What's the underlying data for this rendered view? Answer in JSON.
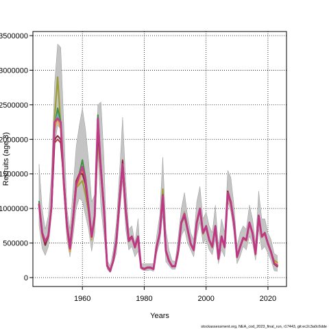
{
  "chart_data": {
    "type": "line",
    "xlabel": "Years",
    "ylabel": "Recruits (age 3)",
    "xlim": [
      1944,
      2026
    ],
    "ylim": [
      0,
      3500000
    ],
    "x_ticks": [
      1960,
      1980,
      2000,
      2020
    ],
    "y_ticks": [
      0,
      500000,
      1000000,
      1500000,
      2000000,
      2500000,
      3000000,
      3500000
    ],
    "y_tick_labels": [
      "0",
      "500000",
      "1000000",
      "1500000",
      "2000000",
      "2500000",
      "3000000",
      "3500000"
    ],
    "grid": true,
    "grid_style": "dotted",
    "legend": "none",
    "band_color": "#c4c4c4",
    "x": [
      1946,
      1947,
      1948,
      1949,
      1950,
      1951,
      1952,
      1953,
      1954,
      1955,
      1956,
      1957,
      1958,
      1959,
      1960,
      1961,
      1962,
      1963,
      1964,
      1965,
      1966,
      1967,
      1968,
      1969,
      1970,
      1971,
      1972,
      1973,
      1974,
      1975,
      1976,
      1977,
      1978,
      1979,
      1980,
      1981,
      1982,
      1983,
      1984,
      1985,
      1986,
      1987,
      1988,
      1989,
      1990,
      1991,
      1992,
      1993,
      1994,
      1995,
      1996,
      1997,
      1998,
      1999,
      2000,
      2001,
      2002,
      2003,
      2004,
      2005,
      2006,
      2007,
      2008,
      2009,
      2010,
      2011,
      2012,
      2013,
      2014,
      2015,
      2016,
      2017,
      2018,
      2019,
      2020,
      2021,
      2022,
      2023
    ],
    "band": {
      "lower": [
        750000,
        420000,
        320000,
        450000,
        900000,
        1900000,
        2200000,
        2150000,
        1200000,
        550000,
        300000,
        600000,
        1000000,
        1150000,
        1100000,
        900000,
        700000,
        380000,
        650000,
        1800000,
        1000000,
        600000,
        120000,
        70000,
        200000,
        350000,
        900000,
        1400000,
        700000,
        400000,
        450000,
        300000,
        380000,
        120000,
        100000,
        100000,
        110000,
        90000,
        350000,
        500000,
        900000,
        230000,
        170000,
        120000,
        120000,
        300000,
        600000,
        700000,
        500000,
        400000,
        300000,
        600000,
        800000,
        500000,
        550000,
        400000,
        330000,
        550000,
        200000,
        400000,
        300000,
        1100000,
        950000,
        650000,
        200000,
        300000,
        450000,
        400000,
        600000,
        500000,
        250000,
        700000,
        400000,
        450000,
        350000,
        250000,
        100000,
        90000
      ],
      "upper": [
        1640000,
        1000000,
        700000,
        900000,
        1500000,
        2800000,
        3380000,
        3330000,
        2200000,
        1000000,
        700000,
        1300000,
        1900000,
        2200000,
        2450000,
        2150000,
        1700000,
        1100000,
        1200000,
        2500000,
        2540000,
        1700000,
        250000,
        170000,
        400000,
        800000,
        1500000,
        2320000,
        1400000,
        700000,
        750000,
        500000,
        850000,
        200000,
        200000,
        200000,
        200000,
        200000,
        600000,
        900000,
        1740000,
        700000,
        400000,
        250000,
        230000,
        600000,
        1000000,
        1230000,
        900000,
        650000,
        550000,
        1100000,
        1320000,
        850000,
        950000,
        750000,
        650000,
        1050000,
        450000,
        850000,
        650000,
        1550000,
        1450000,
        1050000,
        450000,
        650000,
        750000,
        700000,
        1050000,
        850000,
        500000,
        1250000,
        850000,
        850000,
        650000,
        550000,
        350000,
        320000
      ]
    },
    "series": [
      {
        "color": "#b52c3a",
        "values": [
          1050000,
          650000,
          500000,
          600000,
          1000000,
          1950000,
          2000000,
          1950000,
          1400000,
          800000,
          450000,
          900000,
          1400000,
          1500000,
          1550000,
          1350000,
          1000000,
          600000,
          900000,
          2100000,
          1600000,
          1000000,
          180000,
          100000,
          250000,
          550000,
          1150000,
          1700000,
          1000000,
          550000,
          600000,
          450000,
          600000,
          150000,
          130000,
          150000,
          150000,
          130000,
          450000,
          650000,
          1150000,
          400000,
          250000,
          170000,
          170000,
          400000,
          800000,
          900000,
          700000,
          500000,
          400000,
          800000,
          1000000,
          650000,
          750000,
          550000,
          450000,
          750000,
          280000,
          600000,
          450000,
          1250000,
          1100000,
          800000,
          300000,
          450000,
          580000,
          550000,
          800000,
          650000,
          350000,
          900000,
          600000,
          650000,
          500000,
          380000,
          200000,
          170000
        ]
      },
      {
        "color": "#9a9a2a",
        "values": [
          1060000,
          620000,
          480000,
          620000,
          1050000,
          2300000,
          2900000,
          2200000,
          1300000,
          720000,
          380000,
          830000,
          1300000,
          1350000,
          1400000,
          1200000,
          950000,
          550000,
          850000,
          2000000,
          1500000,
          950000,
          170000,
          90000,
          240000,
          520000,
          1100000,
          1600000,
          950000,
          520000,
          580000,
          430000,
          580000,
          140000,
          120000,
          140000,
          140000,
          120000,
          430000,
          630000,
          1280000,
          380000,
          240000,
          160000,
          160000,
          380000,
          780000,
          880000,
          680000,
          480000,
          390000,
          780000,
          980000,
          630000,
          720000,
          530000,
          430000,
          720000,
          260000,
          580000,
          430000,
          1200000,
          1050000,
          780000,
          290000,
          430000,
          560000,
          530000,
          780000,
          630000,
          330000,
          880000,
          580000,
          630000,
          480000,
          360000,
          250000,
          220000
        ]
      },
      {
        "color": "#3b8a3b",
        "values": [
          1100000,
          650000,
          500000,
          620000,
          1050000,
          2150000,
          2450000,
          2250000,
          1380000,
          750000,
          420000,
          850000,
          1350000,
          1500000,
          1700000,
          1450000,
          1050000,
          600000,
          900000,
          2350000,
          1550000,
          980000,
          175000,
          95000,
          245000,
          530000,
          1100000,
          1650000,
          980000,
          530000,
          590000,
          440000,
          590000,
          145000,
          125000,
          145000,
          145000,
          125000,
          440000,
          640000,
          1200000,
          390000,
          245000,
          165000,
          165000,
          390000,
          790000,
          890000,
          690000,
          490000,
          395000,
          790000,
          990000,
          640000,
          730000,
          540000,
          440000,
          730000,
          270000,
          590000,
          440000,
          1220000,
          1080000,
          790000,
          295000,
          440000,
          570000,
          540000,
          790000,
          640000,
          340000,
          890000,
          590000,
          640000,
          490000,
          370000,
          210000,
          180000
        ]
      },
      {
        "color": "#6aa7c9",
        "values": [
          1040000,
          630000,
          490000,
          600000,
          1020000,
          2200000,
          2350000,
          2200000,
          1350000,
          740000,
          410000,
          840000,
          1330000,
          1450000,
          1600000,
          1400000,
          1000000,
          580000,
          880000,
          2250000,
          1520000,
          960000,
          170000,
          92000,
          242000,
          525000,
          1080000,
          1620000,
          960000,
          525000,
          585000,
          435000,
          585000,
          142000,
          122000,
          142000,
          142000,
          122000,
          435000,
          635000,
          1180000,
          385000,
          242000,
          162000,
          162000,
          385000,
          800000,
          950000,
          720000,
          500000,
          400000,
          800000,
          1000000,
          650000,
          740000,
          545000,
          445000,
          740000,
          275000,
          595000,
          445000,
          1230000,
          1090000,
          800000,
          300000,
          445000,
          575000,
          545000,
          800000,
          645000,
          345000,
          895000,
          595000,
          645000,
          495000,
          375000,
          215000,
          185000
        ]
      },
      {
        "color": "#e4a23a",
        "values": [
          1030000,
          610000,
          470000,
          590000,
          1000000,
          2150000,
          2300000,
          2150000,
          1320000,
          720000,
          380000,
          820000,
          1310000,
          1400000,
          1550000,
          1380000,
          980000,
          560000,
          860000,
          2200000,
          1500000,
          940000,
          165000,
          90000,
          238000,
          518000,
          1070000,
          1600000,
          950000,
          518000,
          578000,
          428000,
          578000,
          140000,
          120000,
          140000,
          140000,
          120000,
          428000,
          628000,
          1170000,
          380000,
          238000,
          160000,
          160000,
          380000,
          790000,
          940000,
          710000,
          490000,
          395000,
          790000,
          990000,
          640000,
          730000,
          540000,
          440000,
          730000,
          265000,
          585000,
          440000,
          1210000,
          1070000,
          785000,
          292000,
          438000,
          565000,
          535000,
          785000,
          635000,
          338000,
          885000,
          585000,
          635000,
          488000,
          368000,
          230000,
          200000
        ]
      },
      {
        "color": "#7a1f3a",
        "values": [
          1050000,
          640000,
          470000,
          600000,
          1000000,
          2000000,
          2050000,
          2000000,
          1420000,
          780000,
          440000,
          880000,
          1380000,
          1500000,
          1500000,
          1350000,
          990000,
          590000,
          880000,
          2100000,
          1560000,
          990000,
          175000,
          97000,
          245000,
          540000,
          1120000,
          1680000,
          990000,
          540000,
          595000,
          445000,
          595000,
          146000,
          126000,
          146000,
          146000,
          126000,
          445000,
          645000,
          1150000,
          395000,
          246000,
          166000,
          166000,
          395000,
          795000,
          895000,
          695000,
          495000,
          398000,
          795000,
          995000,
          645000,
          745000,
          545000,
          448000,
          745000,
          278000,
          598000,
          448000,
          1245000,
          1095000,
          798000,
          298000,
          448000,
          578000,
          548000,
          798000,
          648000,
          348000,
          898000,
          598000,
          648000,
          498000,
          378000,
          195000,
          160000
        ]
      },
      {
        "color": "#c23a8a",
        "values": [
          1060000,
          650000,
          520000,
          610000,
          1020000,
          2250000,
          2300000,
          2250000,
          1370000,
          750000,
          420000,
          850000,
          1340000,
          1480000,
          1600000,
          1420000,
          1020000,
          590000,
          890000,
          2300000,
          1540000,
          970000,
          172000,
          94000,
          244000,
          528000,
          1090000,
          1640000,
          970000,
          528000,
          588000,
          438000,
          588000,
          143000,
          123000,
          143000,
          143000,
          123000,
          438000,
          638000,
          1190000,
          388000,
          243000,
          163000,
          163000,
          388000,
          798000,
          920000,
          705000,
          495000,
          398000,
          798000,
          998000,
          648000,
          738000,
          548000,
          448000,
          738000,
          272000,
          592000,
          442000,
          1225000,
          1085000,
          795000,
          298000,
          442000,
          572000,
          542000,
          795000,
          642000,
          342000,
          892000,
          592000,
          642000,
          492000,
          372000,
          205000,
          175000
        ]
      }
    ]
  },
  "footer": {
    "source": "stockassessment.org, NEA_cod_2023_final_run, r17443, git:ec2c3a0c6dde"
  }
}
